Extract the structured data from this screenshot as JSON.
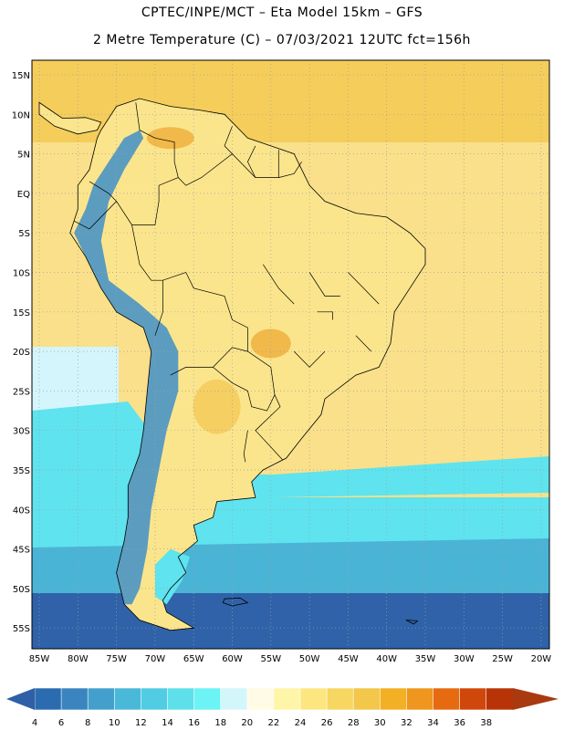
{
  "header": {
    "line1": "CPTEC/INPE/MCT  –   Eta Model 15km  –  GFS",
    "line2": "2 Metre Temperature (C)  –  07/03/2021  12UTC fct=156h"
  },
  "axes": {
    "lat_labels": [
      "15N",
      "10N",
      "5N",
      "EQ",
      "5S",
      "10S",
      "15S",
      "20S",
      "25S",
      "30S",
      "35S",
      "40S",
      "45S",
      "50S",
      "55S"
    ],
    "lon_labels": [
      "85W",
      "80W",
      "75W",
      "70W",
      "65W",
      "60W",
      "55W",
      "50W",
      "45W",
      "40W",
      "35W",
      "30W",
      "25W",
      "20W"
    ]
  },
  "colorbar": {
    "labels": [
      "4",
      "6",
      "8",
      "10",
      "12",
      "14",
      "16",
      "18",
      "20",
      "22",
      "24",
      "26",
      "28",
      "30",
      "32",
      "34",
      "36",
      "38"
    ],
    "colors": [
      "#2b6cb0",
      "#3a85c0",
      "#43a0cc",
      "#4ab8d8",
      "#52cce2",
      "#5de0ea",
      "#6cf3f5",
      "#d3f6fb",
      "#fffbe5",
      "#fff5a8",
      "#fde680",
      "#f7d661",
      "#f2c74a",
      "#f3b024",
      "#ee961d",
      "#e56a10",
      "#cf470a",
      "#b83407"
    ],
    "low_color": "#2f5fa6",
    "high_color": "#a93a10"
  },
  "field": {
    "ocean_cold": "#2f62a8",
    "ocean_cool": "#4ab4d6",
    "ocean_mild": "#5fe3ee",
    "ocean_pale": "#d4f5fb",
    "ocean_warm": "#fae08a",
    "ocean_hot": "#f5cd5a",
    "land_warm": "#fbe58c",
    "land_hot": "#f1b94a",
    "andes": "#3f8fc8",
    "grid_color": "#9aa0a6",
    "border_color": "#000000"
  }
}
